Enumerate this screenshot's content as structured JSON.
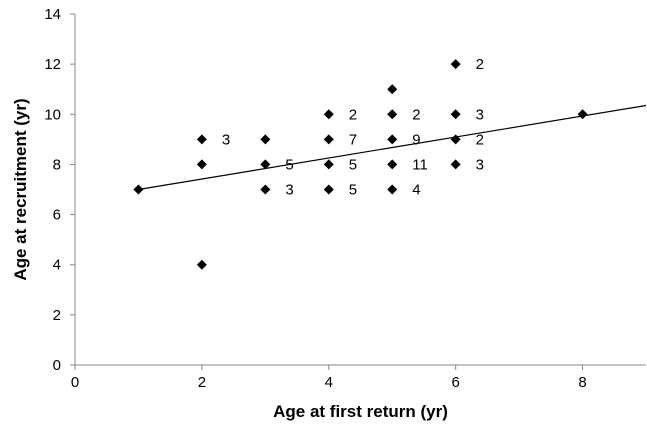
{
  "chart_data": {
    "type": "scatter",
    "title": "",
    "xlabel": "Age at first return (yr)",
    "ylabel": "Age at recruitment (yr)",
    "xlim": [
      0,
      9
    ],
    "ylim": [
      0,
      14
    ],
    "xticks": [
      0,
      2,
      4,
      6,
      8
    ],
    "yticks": [
      0,
      2,
      4,
      6,
      8,
      10,
      12,
      14
    ],
    "grid": false,
    "legend": "none",
    "marker": "diamond",
    "marker_color": "#000000",
    "points": [
      {
        "x": 1,
        "y": 7,
        "label": ""
      },
      {
        "x": 2,
        "y": 4,
        "label": ""
      },
      {
        "x": 2,
        "y": 8,
        "label": ""
      },
      {
        "x": 2,
        "y": 9,
        "label": "3"
      },
      {
        "x": 3,
        "y": 7,
        "label": "3"
      },
      {
        "x": 3,
        "y": 8,
        "label": "5"
      },
      {
        "x": 3,
        "y": 9,
        "label": ""
      },
      {
        "x": 4,
        "y": 7,
        "label": "5"
      },
      {
        "x": 4,
        "y": 8,
        "label": "5"
      },
      {
        "x": 4,
        "y": 9,
        "label": "7"
      },
      {
        "x": 4,
        "y": 10,
        "label": "2"
      },
      {
        "x": 5,
        "y": 7,
        "label": "4"
      },
      {
        "x": 5,
        "y": 8,
        "label": "11"
      },
      {
        "x": 5,
        "y": 9,
        "label": "9"
      },
      {
        "x": 5,
        "y": 10,
        "label": "2"
      },
      {
        "x": 5,
        "y": 11,
        "label": ""
      },
      {
        "x": 6,
        "y": 8,
        "label": "3"
      },
      {
        "x": 6,
        "y": 9,
        "label": "2"
      },
      {
        "x": 6,
        "y": 10,
        "label": "3"
      },
      {
        "x": 6,
        "y": 12,
        "label": "2"
      },
      {
        "x": 8,
        "y": 10,
        "label": ""
      }
    ],
    "trendline": {
      "type": "linear",
      "x": [
        1,
        9
      ],
      "y": [
        7.0,
        10.35
      ]
    }
  }
}
